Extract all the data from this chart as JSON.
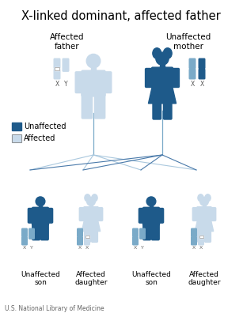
{
  "title": "X-linked dominant, affected father",
  "title_fontsize": 10.5,
  "bg_color": "#ffffff",
  "dark_blue": "#1e5a8a",
  "light_blue": "#c8daea",
  "mid_blue": "#7aaac8",
  "footer": "U.S. National Library of Medicine",
  "parent_labels": [
    "Affected\nfather",
    "Unaffected\nmother"
  ],
  "child_labels": [
    "Unaffected\nson",
    "Affected\ndaughter",
    "Unaffected\nson",
    "Affected\ndaughter"
  ]
}
